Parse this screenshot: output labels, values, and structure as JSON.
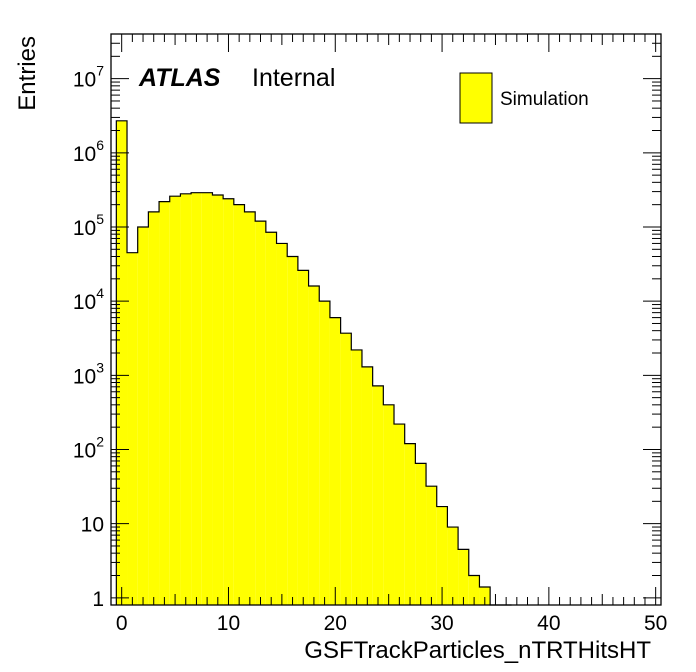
{
  "branding": {
    "experiment": "ATLAS",
    "status": "Internal"
  },
  "legend": {
    "label": "Simulation",
    "placement": "top-right"
  },
  "chart_data": {
    "type": "bar",
    "title": "",
    "xlabel": "GSFTrackParticles_nTRTHitsHT",
    "ylabel": "Entries",
    "xlim": [
      -1,
      50.5
    ],
    "ylim": [
      0.8,
      40000000
    ],
    "log_y": true,
    "grid": false,
    "fill_color": "#ffff00",
    "line_color": "#000000",
    "bin_width": 1,
    "bins": [
      -0.5,
      0.5,
      1.5,
      2.5,
      3.5,
      4.5,
      5.5,
      6.5,
      7.5,
      8.5,
      9.5,
      10.5,
      11.5,
      12.5,
      13.5,
      14.5,
      15.5,
      16.5,
      17.5,
      18.5,
      19.5,
      20.5,
      21.5,
      22.5,
      23.5,
      24.5,
      25.5,
      26.5,
      27.5,
      28.5,
      29.5,
      30.5,
      31.5,
      32.5,
      33.5,
      34.5,
      35.5
    ],
    "values": [
      2700000,
      45000,
      100000,
      160000,
      220000,
      260000,
      280000,
      290000,
      290000,
      270000,
      240000,
      200000,
      160000,
      120000,
      85000,
      60000,
      40000,
      26000,
      16000,
      10000,
      6000,
      3700,
      2200,
      1300,
      720,
      400,
      220,
      120,
      65,
      32,
      17,
      9,
      4.5,
      2,
      1.4,
      0.7,
      0.5
    ],
    "x_ticks": [
      0,
      10,
      20,
      30,
      40,
      50
    ],
    "x_tick_labels": [
      "0",
      "10",
      "20",
      "30",
      "40",
      "50"
    ],
    "y_ticks": [
      1,
      10,
      100,
      1000,
      10000,
      100000,
      1000000,
      10000000
    ],
    "y_tick_labels": [
      {
        "base": "1",
        "exp": ""
      },
      {
        "base": "10",
        "exp": ""
      },
      {
        "base": "10",
        "exp": "2"
      },
      {
        "base": "10",
        "exp": "3"
      },
      {
        "base": "10",
        "exp": "4"
      },
      {
        "base": "10",
        "exp": "5"
      },
      {
        "base": "10",
        "exp": "6"
      },
      {
        "base": "10",
        "exp": "7"
      }
    ]
  }
}
